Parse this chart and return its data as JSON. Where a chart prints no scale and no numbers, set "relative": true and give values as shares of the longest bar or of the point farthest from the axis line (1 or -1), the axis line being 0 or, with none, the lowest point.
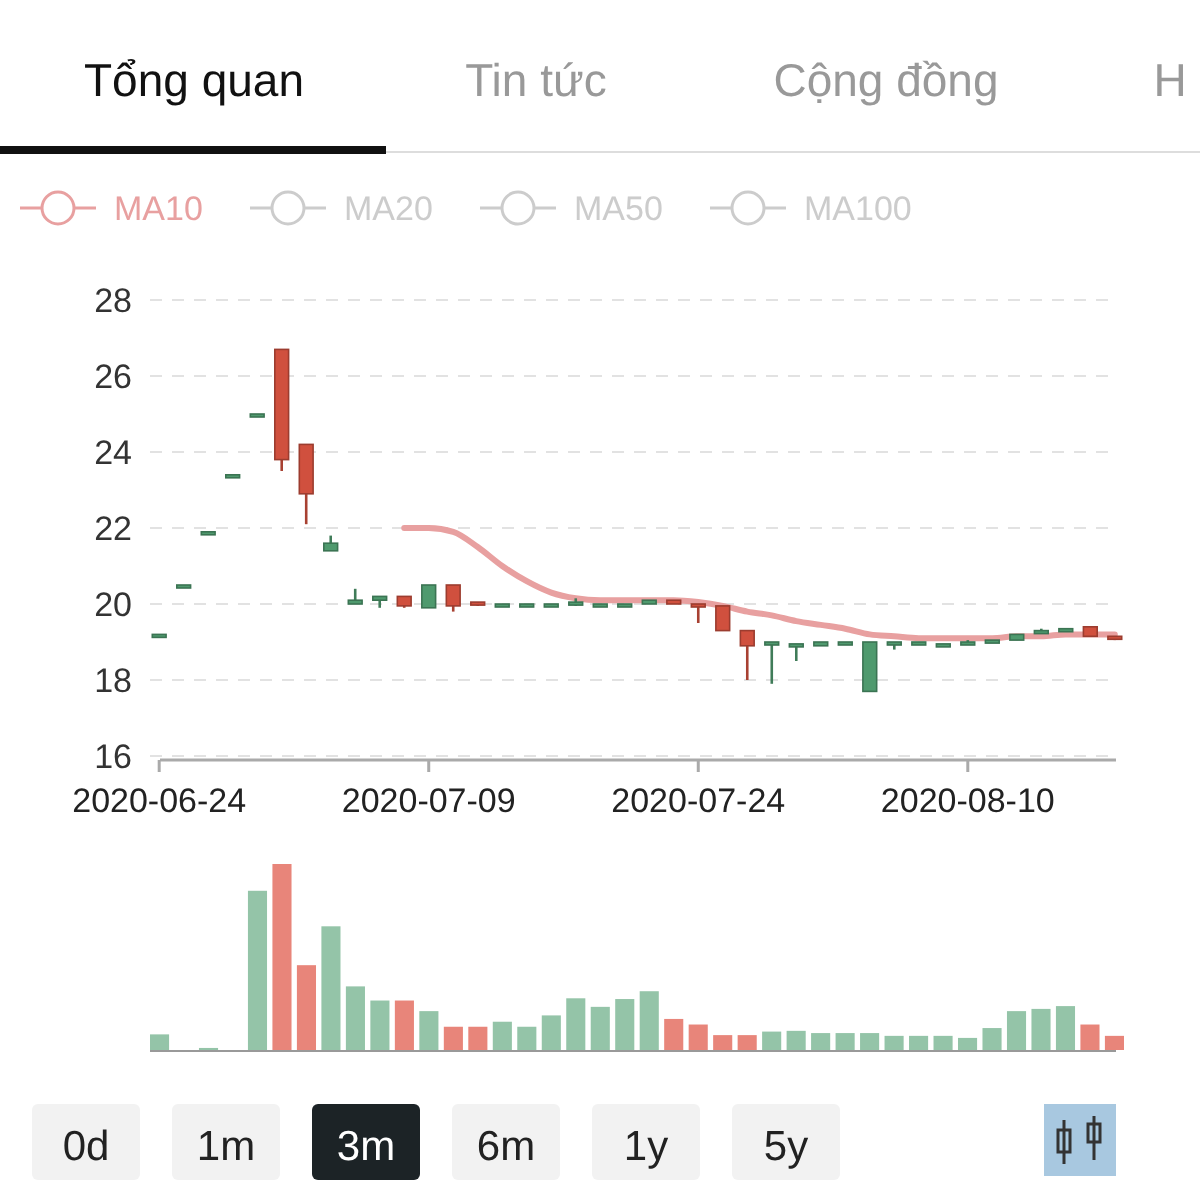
{
  "chart_data": [
    {
      "type": "other",
      "annotations": [
        "Tổng quan",
        "Tin tức",
        "Cộng đồng",
        "H"
      ]
    },
    {
      "type": "candlestick",
      "categories": [
        "2020-06-24",
        null,
        null,
        null,
        null,
        null,
        null,
        null,
        null,
        null,
        null,
        "2020-07-09",
        null,
        null,
        null,
        null,
        null,
        null,
        null,
        null,
        null,
        null,
        "2020-07-24",
        null,
        null,
        null,
        null,
        null,
        null,
        null,
        null,
        null,
        null,
        "2020-08-10",
        null,
        null,
        null,
        null,
        null,
        null
      ],
      "ohlc": [
        [
          19.2,
          19.2,
          19.2,
          19.2
        ],
        [
          20.5,
          20.5,
          20.5,
          20.5
        ],
        [
          21.9,
          21.9,
          21.9,
          21.9
        ],
        [
          23.4,
          23.4,
          23.4,
          23.4
        ],
        [
          25.0,
          25.0,
          25.0,
          25.0
        ],
        [
          26.7,
          26.7,
          23.5,
          23.8
        ],
        [
          24.2,
          24.2,
          22.1,
          22.9
        ],
        [
          21.4,
          21.8,
          21.4,
          21.6
        ],
        [
          20.0,
          20.4,
          20.0,
          20.1
        ],
        [
          20.1,
          20.2,
          19.9,
          20.2
        ],
        [
          20.2,
          20.2,
          19.9,
          19.95
        ],
        [
          19.9,
          20.5,
          19.9,
          20.5
        ],
        [
          20.5,
          20.5,
          19.8,
          19.95
        ],
        [
          20.05,
          20.05,
          19.95,
          20.0
        ],
        [
          19.95,
          20.0,
          19.95,
          20.0
        ],
        [
          20.0,
          20.0,
          20.0,
          20.0
        ],
        [
          20.0,
          20.0,
          20.0,
          20.0
        ],
        [
          20.0,
          20.15,
          19.95,
          20.05
        ],
        [
          20.0,
          20.0,
          20.0,
          20.0
        ],
        [
          20.0,
          20.0,
          20.0,
          20.0
        ],
        [
          20.0,
          20.1,
          20.0,
          20.1
        ],
        [
          20.1,
          20.1,
          20.0,
          20.0
        ],
        [
          20.0,
          20.0,
          19.5,
          19.95
        ],
        [
          19.95,
          19.95,
          19.3,
          19.3
        ],
        [
          19.3,
          19.3,
          18.0,
          18.9
        ],
        [
          18.95,
          19.0,
          17.9,
          19.0
        ],
        [
          18.9,
          18.95,
          18.5,
          18.95
        ],
        [
          18.9,
          19.0,
          18.9,
          19.0
        ],
        [
          18.95,
          19.0,
          18.95,
          19.0
        ],
        [
          17.7,
          19.0,
          17.7,
          19.0
        ],
        [
          18.95,
          19.0,
          18.8,
          19.0
        ],
        [
          18.95,
          19.0,
          18.95,
          19.0
        ],
        [
          18.9,
          18.95,
          18.9,
          18.95
        ],
        [
          18.95,
          19.05,
          18.95,
          19.0
        ],
        [
          19.0,
          19.05,
          19.0,
          19.05
        ],
        [
          19.05,
          19.2,
          19.05,
          19.2
        ],
        [
          19.25,
          19.35,
          19.25,
          19.3
        ],
        [
          19.3,
          19.35,
          19.3,
          19.35
        ],
        [
          19.4,
          19.4,
          19.15,
          19.15
        ],
        [
          19.15,
          19.15,
          19.05,
          19.1
        ]
      ],
      "colors": [
        "#4f9a6e",
        "#4f9a6e",
        "#4f9a6e",
        "#4f9a6e",
        "#4f9a6e",
        "#d0503e",
        "#d0503e",
        "#4f9a6e",
        "#4f9a6e",
        "#4f9a6e",
        "#d0503e",
        "#4f9a6e",
        "#d0503e",
        "#d0503e",
        "#4f9a6e",
        "#4f9a6e",
        "#4f9a6e",
        "#4f9a6e",
        "#4f9a6e",
        "#4f9a6e",
        "#4f9a6e",
        "#d0503e",
        "#d0503e",
        "#d0503e",
        "#d0503e",
        "#4f9a6e",
        "#4f9a6e",
        "#4f9a6e",
        "#4f9a6e",
        "#4f9a6e",
        "#4f9a6e",
        "#4f9a6e",
        "#4f9a6e",
        "#4f9a6e",
        "#4f9a6e",
        "#4f9a6e",
        "#4f9a6e",
        "#4f9a6e",
        "#d0503e",
        "#d0503e"
      ],
      "series": [
        {
          "name": "MA10",
          "type": "line",
          "color": "#e8a0a0",
          "values": [
            null,
            null,
            null,
            null,
            null,
            null,
            null,
            null,
            null,
            null,
            22.0,
            22.0,
            21.9,
            21.5,
            21.0,
            20.6,
            20.3,
            20.15,
            20.1,
            20.1,
            20.1,
            20.1,
            20.05,
            19.95,
            19.8,
            19.7,
            19.55,
            19.45,
            19.35,
            19.2,
            19.15,
            19.1,
            19.1,
            19.1,
            19.1,
            19.15,
            19.15,
            19.2,
            19.2,
            19.2
          ]
        },
        {
          "name": "MA20",
          "type": "line",
          "color": "#cccccc",
          "values": [
            null,
            null,
            null,
            null,
            null,
            null,
            null,
            null,
            null,
            null,
            null,
            null,
            null,
            null,
            null,
            null,
            null,
            null,
            null,
            null,
            null,
            null,
            null,
            null,
            null,
            null,
            null,
            null,
            null,
            null,
            null,
            null,
            null,
            null,
            null,
            null,
            null,
            null,
            null,
            null
          ]
        },
        {
          "name": "MA50",
          "type": "line",
          "color": "#cccccc",
          "values": [
            null,
            null,
            null,
            null,
            null,
            null,
            null,
            null,
            null,
            null,
            null,
            null,
            null,
            null,
            null,
            null,
            null,
            null,
            null,
            null,
            null,
            null,
            null,
            null,
            null,
            null,
            null,
            null,
            null,
            null,
            null,
            null,
            null,
            null,
            null,
            null,
            null,
            null,
            null,
            null
          ]
        },
        {
          "name": "MA100",
          "type": "line",
          "color": "#cccccc",
          "values": [
            null,
            null,
            null,
            null,
            null,
            null,
            null,
            null,
            null,
            null,
            null,
            null,
            null,
            null,
            null,
            null,
            null,
            null,
            null,
            null,
            null,
            null,
            null,
            null,
            null,
            null,
            null,
            null,
            null,
            null,
            null,
            null,
            null,
            null,
            null,
            null,
            null,
            null,
            null,
            null
          ]
        }
      ],
      "ylim": [
        16,
        28
      ],
      "yticks": [
        16,
        18,
        20,
        22,
        24,
        26,
        28
      ],
      "grid": "y",
      "legend": "top left"
    },
    {
      "type": "bar",
      "relative": true,
      "categories": [
        null,
        null,
        null,
        null,
        null,
        null,
        null,
        null,
        null,
        null,
        null,
        null,
        null,
        null,
        null,
        null,
        null,
        null,
        null,
        null,
        null,
        null,
        null,
        null,
        null,
        null,
        null,
        null,
        null,
        null,
        null,
        null,
        null,
        null,
        null,
        null,
        null,
        null,
        null,
        null
      ],
      "values": [
        0.084,
        null,
        0.011,
        null,
        0.856,
        1,
        0.456,
        0.665,
        0.342,
        0.266,
        0.266,
        0.209,
        0.125,
        0.125,
        0.152,
        0.125,
        0.186,
        0.278,
        0.232,
        0.274,
        0.316,
        0.167,
        0.137,
        0.08,
        0.08,
        0.099,
        0.103,
        0.091,
        0.091,
        0.091,
        0.076,
        0.076,
        0.076,
        0.065,
        0.118,
        0.209,
        0.221,
        0.236,
        0.137,
        0.076
      ],
      "colors": [
        "#94c4a8",
        null,
        "#94c4a8",
        null,
        "#94c4a8",
        "#e8857a",
        "#e8857a",
        "#94c4a8",
        "#94c4a8",
        "#94c4a8",
        "#e8857a",
        "#94c4a8",
        "#e8857a",
        "#e8857a",
        "#94c4a8",
        "#94c4a8",
        "#94c4a8",
        "#94c4a8",
        "#94c4a8",
        "#94c4a8",
        "#94c4a8",
        "#e8857a",
        "#e8857a",
        "#e8857a",
        "#e8857a",
        "#94c4a8",
        "#94c4a8",
        "#94c4a8",
        "#94c4a8",
        "#94c4a8",
        "#94c4a8",
        "#94c4a8",
        "#94c4a8",
        "#94c4a8",
        "#94c4a8",
        "#94c4a8",
        "#94c4a8",
        "#94c4a8",
        "#e8857a",
        "#e8857a"
      ]
    },
    {
      "type": "other",
      "annotations": [
        "0d",
        "1m",
        "3m",
        "6m",
        "1y",
        "5y"
      ]
    }
  ]
}
